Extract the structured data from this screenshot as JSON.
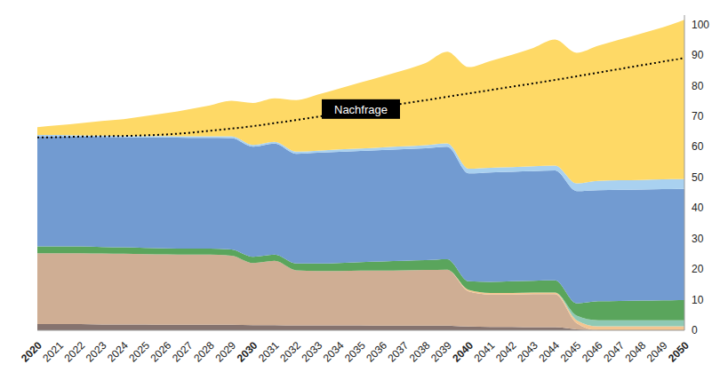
{
  "chart_data": {
    "type": "area",
    "stacked": true,
    "grid": false,
    "categories": [
      "2020",
      "2021",
      "2022",
      "2023",
      "2024",
      "2025",
      "2026",
      "2027",
      "2028",
      "2029",
      "2030",
      "2031",
      "2032",
      "2033",
      "2034",
      "2035",
      "2036",
      "2037",
      "2038",
      "2039",
      "2040",
      "2041",
      "2042",
      "2043",
      "2044",
      "2045",
      "2046",
      "2047",
      "2048",
      "2049",
      "2050"
    ],
    "ylim": [
      0,
      103
    ],
    "yticks": [
      0,
      10,
      20,
      30,
      40,
      50,
      60,
      70,
      80,
      90,
      100
    ],
    "series": [
      {
        "type": "area",
        "color": "#85736f",
        "values": [
          2.0,
          2.0,
          2.0,
          1.9,
          1.9,
          1.9,
          1.8,
          1.8,
          1.8,
          1.8,
          1.7,
          1.7,
          1.6,
          1.6,
          1.6,
          1.6,
          1.5,
          1.5,
          1.5,
          1.5,
          1.2,
          1.1,
          1.1,
          1.0,
          1.0,
          0.3,
          0,
          0,
          0,
          0,
          0
        ]
      },
      {
        "type": "area",
        "color": "#cfae94",
        "values": [
          23.2,
          23.2,
          23.2,
          23.2,
          23.1,
          23.0,
          23.0,
          22.9,
          22.9,
          22.6,
          20.3,
          21.0,
          18.0,
          17.8,
          17.8,
          17.9,
          18.0,
          18.1,
          18.2,
          18.3,
          11.5,
          10.6,
          10.6,
          10.8,
          10.8,
          2.0,
          0,
          0,
          0,
          0,
          0
        ]
      },
      {
        "type": "area",
        "color": "#f4c590",
        "values": [
          0,
          0,
          0,
          0,
          0,
          0,
          0,
          0,
          0,
          0,
          0,
          0,
          0,
          0,
          0,
          0,
          0,
          0,
          0,
          0,
          0.5,
          0.5,
          0.5,
          0.5,
          0.5,
          1.0,
          1.3,
          1.3,
          1.3,
          1.3,
          1.3
        ]
      },
      {
        "type": "area",
        "color": "#8fc9b4",
        "values": [
          0,
          0,
          0,
          0,
          0,
          0,
          0,
          0,
          0,
          0,
          0,
          0,
          0,
          0,
          0,
          0,
          0,
          0,
          0,
          0,
          0,
          0,
          0,
          0,
          0,
          1.5,
          2.0,
          2.0,
          2.0,
          2.0,
          2.0
        ]
      },
      {
        "type": "area",
        "color": "#5aa55c",
        "values": [
          2.2,
          2.2,
          2.2,
          2.1,
          2.1,
          2.0,
          2.0,
          2.0,
          2.0,
          2.0,
          2.0,
          2.0,
          2.2,
          2.4,
          2.6,
          2.8,
          3.0,
          3.1,
          3.2,
          3.4,
          2.8,
          3.6,
          3.8,
          3.9,
          4.0,
          4.0,
          6.2,
          6.3,
          6.4,
          6.5,
          6.6
        ]
      },
      {
        "type": "area",
        "color": "#729bd1",
        "values": [
          36.0,
          36.0,
          35.9,
          36.0,
          36.0,
          36.1,
          36.2,
          36.2,
          36.2,
          36.4,
          36.0,
          36.3,
          35.9,
          36.2,
          36.3,
          36.3,
          36.4,
          36.5,
          36.6,
          36.8,
          35.3,
          35.8,
          35.8,
          35.8,
          35.9,
          36.7,
          36.3,
          36.3,
          36.3,
          36.3,
          36.3
        ]
      },
      {
        "type": "area",
        "color": "#a9d1f0",
        "values": [
          0.4,
          0.4,
          0.4,
          0.4,
          0.4,
          0.5,
          0.5,
          0.5,
          0.5,
          0.6,
          0.6,
          0.6,
          0.7,
          0.7,
          0.8,
          0.8,
          0.9,
          0.9,
          1.0,
          1.1,
          1.5,
          1.5,
          1.5,
          1.6,
          1.6,
          2.5,
          3.0,
          3.1,
          3.1,
          3.2,
          3.2
        ]
      },
      {
        "type": "area",
        "color": "#fed966",
        "values": [
          2.6,
          3.2,
          4.0,
          4.8,
          5.5,
          6.5,
          7.5,
          8.8,
          10.1,
          11.6,
          13.7,
          14.2,
          16.8,
          18.3,
          19.9,
          21.6,
          23.2,
          24.9,
          26.8,
          29.9,
          33.2,
          34.9,
          36.7,
          38.7,
          41.2,
          42.7,
          44.2,
          46.0,
          47.9,
          49.7,
          52.1
        ]
      },
      {
        "name": "Nachfrage",
        "type": "line",
        "line_style": "dotted",
        "color": "#000000",
        "values": [
          63.0,
          63.1,
          63.3,
          63.4,
          63.5,
          63.7,
          64.0,
          64.5,
          65.2,
          65.9,
          66.7,
          67.7,
          68.7,
          69.8,
          70.9,
          72.0,
          73.1,
          74.1,
          75.2,
          76.3,
          77.4,
          78.5,
          79.6,
          80.7,
          81.8,
          83.0,
          84.2,
          85.4,
          86.6,
          87.8,
          89.0
        ]
      }
    ]
  }
}
